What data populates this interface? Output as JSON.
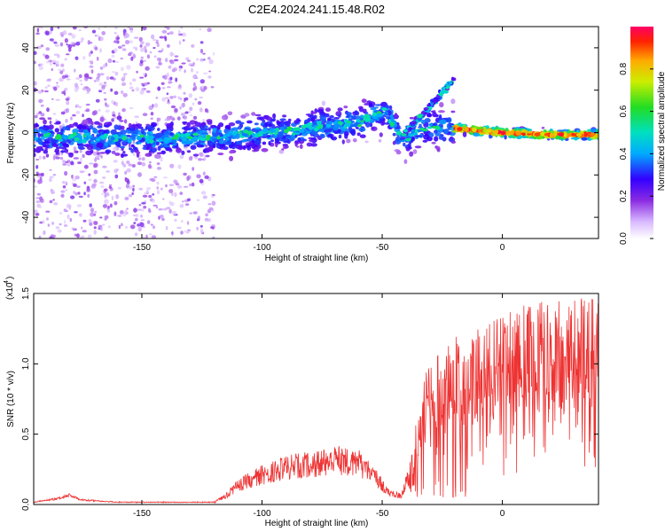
{
  "title": "C2E4.2024.241.15.48.R02",
  "chart_data": [
    {
      "type": "heatmap",
      "xlabel": "Height of straight line (km)",
      "ylabel": "Frequency (Hz)",
      "xlim": [
        -195,
        40
      ],
      "ylim": [
        -50,
        50
      ],
      "xticks": [
        -150,
        -100,
        -50,
        0
      ],
      "yticks": [
        -40,
        -20,
        0,
        20,
        40
      ],
      "colorbar": {
        "label": "Normalized spectral amplitude",
        "range": [
          0,
          1
        ],
        "ticks": [
          0.0,
          0.2,
          0.4,
          0.6,
          0.8
        ],
        "tick_labels": [
          "0.0",
          "0.2",
          "0.4",
          "0.6",
          "0.8"
        ]
      },
      "ridge": {
        "x": [
          -195,
          -150,
          -120,
          -100,
          -80,
          -60,
          -48,
          -42,
          -30,
          -20,
          -10,
          0,
          20,
          40
        ],
        "y": [
          -2,
          -3,
          -2,
          0,
          2,
          5,
          10,
          -3,
          3,
          2,
          1,
          0,
          -1,
          -1
        ]
      },
      "branch": {
        "x": [
          -42,
          -38,
          -32,
          -28,
          -24,
          -20
        ],
        "y": [
          -3,
          3,
          10,
          15,
          20,
          25
        ]
      },
      "noise_band_x": [
        -195,
        -120
      ]
    },
    {
      "type": "line",
      "xlabel": "Height of straight line (km)",
      "ylabel": "SNR (10 * v/v)",
      "exponent_label": "(x10",
      "exponent_value": "4",
      "xlim": [
        -195,
        40
      ],
      "ylim": [
        0,
        1.5
      ],
      "xticks": [
        -150,
        -100,
        -50,
        0
      ],
      "yticks": [
        0.0,
        0.5,
        1.0,
        1.5
      ],
      "ytick_labels": [
        "0.0",
        "0.5",
        "1.0",
        "1.5"
      ],
      "line_color": "#ee3333",
      "envelope": {
        "x": [
          -195,
          -185,
          -180,
          -175,
          -160,
          -130,
          -120,
          -115,
          -110,
          -100,
          -90,
          -80,
          -70,
          -60,
          -52,
          -48,
          -42,
          -38,
          -35,
          -30,
          -25,
          -20,
          -15,
          -10,
          -5,
          0,
          5,
          10,
          20,
          30,
          40
        ],
        "y": [
          0.02,
          0.05,
          0.08,
          0.04,
          0.02,
          0.02,
          0.02,
          0.08,
          0.18,
          0.28,
          0.35,
          0.38,
          0.42,
          0.4,
          0.25,
          0.12,
          0.08,
          0.35,
          0.7,
          1.1,
          1.05,
          1.2,
          1.15,
          1.25,
          1.3,
          1.35,
          1.4,
          1.45,
          1.45,
          1.47,
          1.48
        ]
      }
    }
  ]
}
